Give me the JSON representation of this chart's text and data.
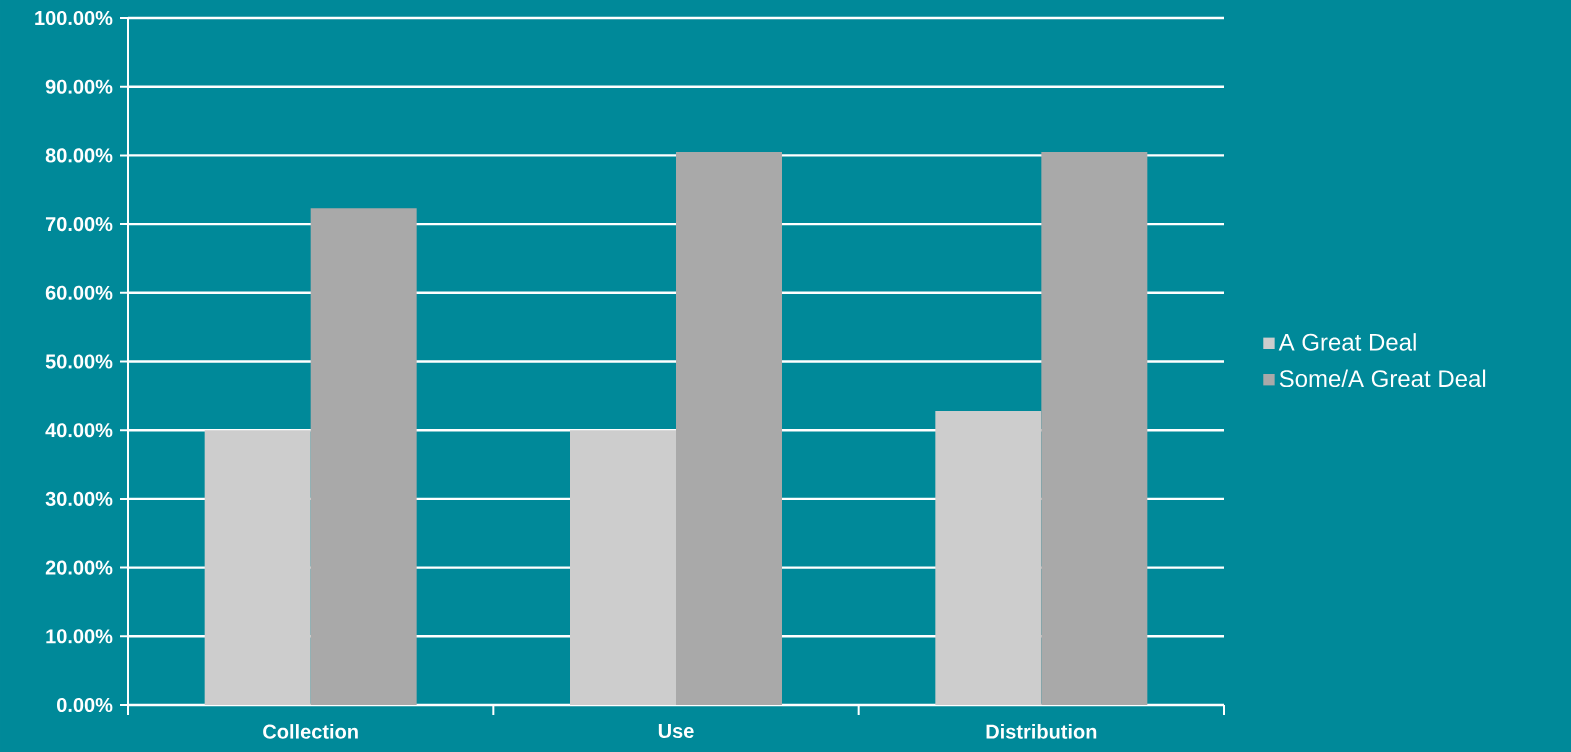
{
  "chart_data": {
    "type": "bar",
    "categories": [
      "Collection",
      "Use",
      "Distribution"
    ],
    "series": [
      {
        "name": "A Great Deal",
        "color": "#cdcdcd",
        "values": [
          40.0,
          40.0,
          42.8
        ]
      },
      {
        "name": "Some/A Great Deal",
        "color": "#a9a9a9",
        "values": [
          72.3,
          80.5,
          80.5
        ]
      }
    ],
    "ylim": [
      0,
      100
    ],
    "yticks": [
      {
        "value": 0,
        "label": "0.00%"
      },
      {
        "value": 10,
        "label": "10.00%"
      },
      {
        "value": 20,
        "label": "20.00%"
      },
      {
        "value": 30,
        "label": "30.00%"
      },
      {
        "value": 40,
        "label": "40.00%"
      },
      {
        "value": 50,
        "label": "50.00%"
      },
      {
        "value": 60,
        "label": "60.00%"
      },
      {
        "value": 70,
        "label": "70.00%"
      },
      {
        "value": 80,
        "label": "80.00%"
      },
      {
        "value": 90,
        "label": "90.00%"
      },
      {
        "value": 100,
        "label": "100.00%"
      }
    ],
    "grid": "y",
    "legend": "right"
  }
}
